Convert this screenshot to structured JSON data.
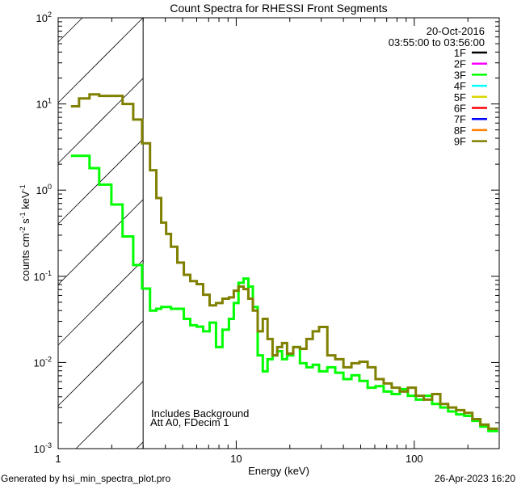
{
  "chart_data": {
    "type": "line",
    "title": "Count Spectra for RHESSI Front Segments",
    "xlabel": "Energy (keV)",
    "ylabel": "counts cm-2 s-1 keV-1",
    "ylabel_parts": [
      "counts cm",
      "-2",
      " s",
      "-1",
      " keV",
      "-1"
    ],
    "xscale": "log",
    "yscale": "log",
    "xlim": [
      1,
      300
    ],
    "ylim": [
      0.001,
      100
    ],
    "x_ticks": [
      {
        "value": 1,
        "label": "1"
      },
      {
        "value": 10,
        "label": "10"
      },
      {
        "value": 100,
        "label": "100"
      }
    ],
    "y_ticks": [
      {
        "value": 100,
        "base": "10",
        "exp": "2"
      },
      {
        "value": 10,
        "base": "10",
        "exp": "1"
      },
      {
        "value": 1,
        "base": "10",
        "exp": "0"
      },
      {
        "value": 0.1,
        "base": "10",
        "exp": "-1"
      },
      {
        "value": 0.01,
        "base": "10",
        "exp": "-2"
      },
      {
        "value": 0.001,
        "base": "10",
        "exp": "-3"
      }
    ],
    "hatched_region_keV": [
      1,
      3
    ],
    "date": "20-Oct-2016",
    "time_range": "03:55:00 to 03:56:00",
    "legend": [
      {
        "label": "1F",
        "color": "#000000"
      },
      {
        "label": "2F",
        "color": "#ff00ff"
      },
      {
        "label": "3F",
        "color": "#00ff00"
      },
      {
        "label": "4F",
        "color": "#00ffff"
      },
      {
        "label": "5F",
        "color": "#d8d800"
      },
      {
        "label": "6F",
        "color": "#ff0000"
      },
      {
        "label": "7F",
        "color": "#0000ff"
      },
      {
        "label": "8F",
        "color": "#ff8000"
      },
      {
        "label": "9F",
        "color": "#808000"
      }
    ],
    "legend_position": "top-right",
    "annotations": [
      "Includes Background",
      "Att A0, FDecim 1"
    ],
    "energy_edges": [
      1.18,
      1.31,
      1.5,
      1.7,
      1.99,
      2.3,
      2.64,
      2.96,
      3.28,
      3.56,
      3.79,
      4.04,
      4.3,
      4.67,
      5.08,
      5.52,
      6.0,
      6.52,
      7.09,
      7.7,
      8.37,
      9.1,
      9.69,
      10.3,
      11.0,
      11.7,
      12.4,
      13.2,
      14.1,
      15.0,
      16.0,
      17.0,
      18.1,
      19.3,
      20.9,
      22.8,
      24.8,
      26.9,
      29.2,
      32.5,
      36.0,
      40.0,
      44.4,
      49.2,
      54.7,
      60.6,
      67.3,
      74.7,
      82.9,
      92.0,
      102,
      113,
      126,
      140,
      155,
      172,
      191,
      212,
      235,
      261,
      296
    ],
    "series": [
      {
        "name": "3F",
        "color": "#00ff00",
        "values": [
          2.5,
          2.5,
          1.8,
          1.16,
          0.68,
          0.29,
          0.135,
          0.072,
          0.04,
          0.042,
          0.044,
          0.044,
          0.042,
          0.042,
          0.032,
          0.027,
          0.026,
          0.023,
          0.029,
          0.0151,
          0.024,
          0.032,
          0.049,
          0.084,
          0.094,
          0.076,
          0.044,
          0.0121,
          0.0079,
          0.0109,
          0.0121,
          0.0135,
          0.0109,
          0.0121,
          0.0151,
          0.0098,
          0.0088,
          0.0094,
          0.0079,
          0.0088,
          0.0076,
          0.0064,
          0.0071,
          0.0061,
          0.0051,
          0.0053,
          0.0046,
          0.0043,
          0.0049,
          0.0041,
          0.0037,
          0.0041,
          0.0033,
          0.003,
          0.0027,
          0.0025,
          0.0024,
          0.0021,
          0.0018,
          0.0016
        ]
      },
      {
        "name": "9F",
        "color": "#808000",
        "values": [
          9.4,
          11.6,
          12.9,
          12.4,
          12.4,
          10.0,
          6.6,
          3.5,
          1.7,
          0.81,
          0.42,
          0.31,
          0.22,
          0.144,
          0.104,
          0.088,
          0.081,
          0.061,
          0.046,
          0.049,
          0.055,
          0.057,
          0.068,
          0.076,
          0.071,
          0.055,
          0.04,
          0.023,
          0.032,
          0.0187,
          0.0121,
          0.0151,
          0.0168,
          0.0127,
          0.0151,
          0.0144,
          0.0187,
          0.023,
          0.0258,
          0.0121,
          0.0109,
          0.0088,
          0.0098,
          0.0102,
          0.0088,
          0.0064,
          0.0057,
          0.0051,
          0.0046,
          0.0051,
          0.0041,
          0.0037,
          0.0043,
          0.0033,
          0.003,
          0.0028,
          0.0026,
          0.0022,
          0.0019,
          0.0017
        ]
      }
    ]
  },
  "footer": {
    "generated_by": "Generated by hsi_min_spectra_plot.pro",
    "timestamp": "26-Apr-2023 16:20"
  }
}
